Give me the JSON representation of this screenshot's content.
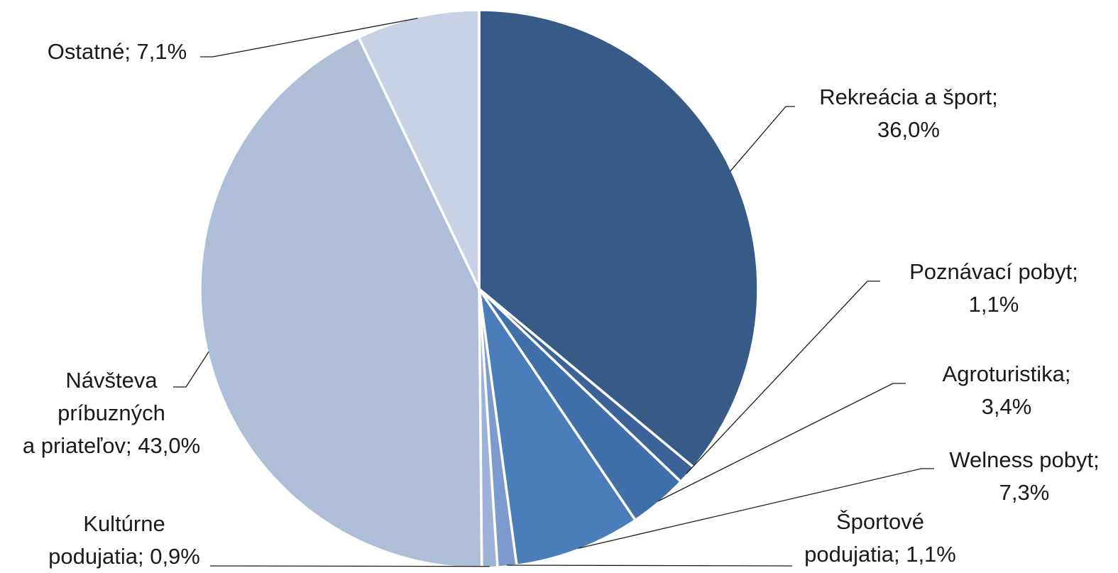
{
  "chart_data": {
    "type": "pie",
    "title": "",
    "start_angle_deg": 0,
    "direction": "clockwise",
    "slices": [
      {
        "key": "rekreacia",
        "label_lines": [
          "Rekreácia a šport;",
          "36,0%"
        ],
        "category": "Rekreácia a šport",
        "value": 36.0,
        "color": "#375A87"
      },
      {
        "key": "poznavaci",
        "label_lines": [
          "Poznávací pobyt;",
          "1,1%"
        ],
        "category": "Poznávací pobyt",
        "value": 1.1,
        "color": "#3B639A"
      },
      {
        "key": "agroturistika",
        "label_lines": [
          "Agroturistika;",
          "3,4%"
        ],
        "category": "Agroturistika",
        "value": 3.4,
        "color": "#416FA9"
      },
      {
        "key": "welness",
        "label_lines": [
          "Welness pobyt;",
          "7,3%"
        ],
        "category": "Welness pobyt",
        "value": 7.3,
        "color": "#4A7DBA"
      },
      {
        "key": "sportove",
        "label_lines": [
          "Športové",
          "podujatia; 1,1%"
        ],
        "category": "Športové podujatia",
        "value": 1.1,
        "color": "#7C9ACB"
      },
      {
        "key": "kulturne",
        "label_lines": [
          "Kultúrne",
          "podujatia; 0,9%"
        ],
        "category": "Kultúrne podujatia",
        "value": 0.9,
        "color": "#9DB2D7"
      },
      {
        "key": "navsteva",
        "label_lines": [
          "Návšteva",
          "príbuzných",
          "a priateľov; 43,0%"
        ],
        "category": "Návšteva príbuzných a priateľov",
        "value": 43.0,
        "color": "#AEBED9"
      },
      {
        "key": "ostatne",
        "label_lines": [
          "Ostatné; 7,1%"
        ],
        "category": "Ostatné",
        "value": 7.1,
        "color": "#C9D1E4"
      }
    ]
  }
}
